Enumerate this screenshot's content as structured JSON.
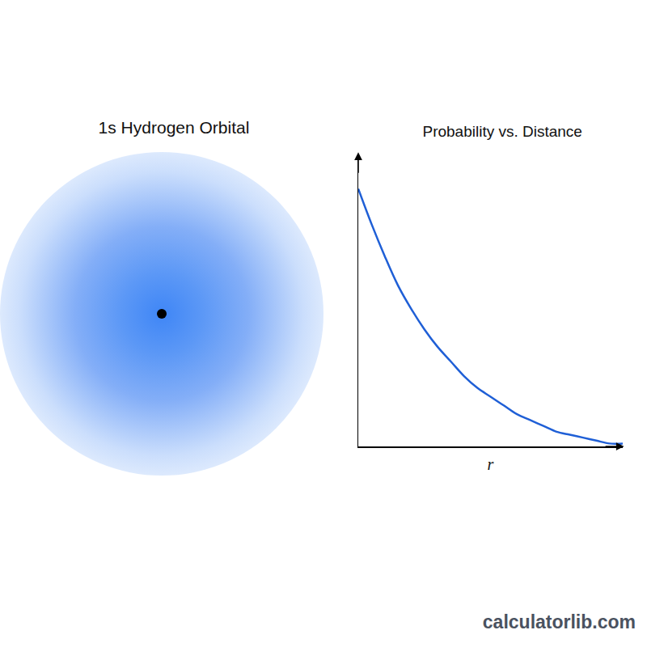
{
  "chart_data": {
    "type": "line",
    "title": "Probability vs. Distance",
    "x_label": "r",
    "x": [
      0,
      0.5,
      1,
      1.5,
      2,
      2.5,
      3,
      3.5,
      4,
      4.5,
      5,
      5.5,
      6,
      6.5,
      7,
      7.5,
      8,
      8.5,
      9,
      9.5,
      10
    ],
    "values": [
      0.88,
      0.76,
      0.65,
      0.55,
      0.47,
      0.4,
      0.34,
      0.29,
      0.24,
      0.2,
      0.17,
      0.14,
      0.11,
      0.09,
      0.07,
      0.05,
      0.04,
      0.03,
      0.02,
      0.01,
      0.01
    ],
    "color": "#1f5fd6",
    "xlim": [
      0,
      10
    ],
    "ylim": [
      0,
      1
    ],
    "xticks": [],
    "yticks": [],
    "tick_labels": false,
    "grid": false
  },
  "orbital": {
    "title": "1s Hydrogen Orbital"
  },
  "watermark": "calculatorlib.com"
}
